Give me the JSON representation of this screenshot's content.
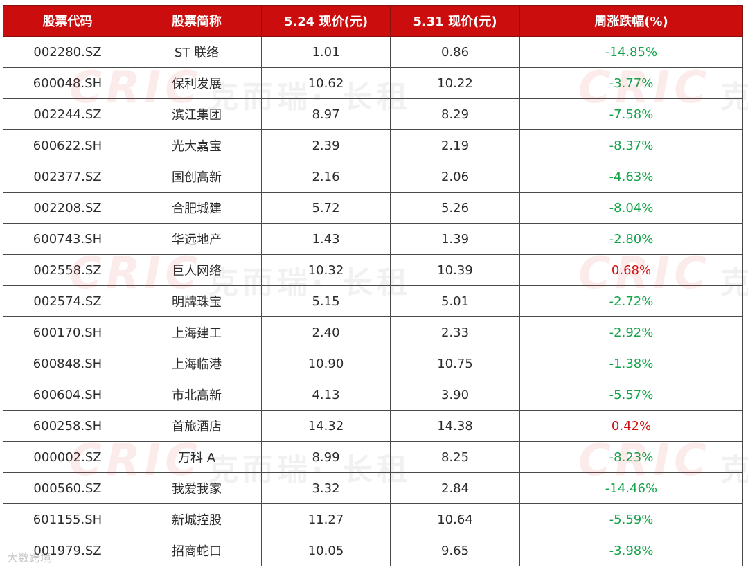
{
  "table": {
    "headers": [
      "股票代码",
      "股票简称",
      "5.24 现价(元)",
      "5.31 现价(元)",
      "周涨跌幅(%)"
    ],
    "rows": [
      {
        "code": "002280.SZ",
        "name": "ST 联络",
        "price_524": "1.01",
        "price_531": "0.86",
        "change": "-14.85%",
        "direction": "neg"
      },
      {
        "code": "600048.SH",
        "name": "保利发展",
        "price_524": "10.62",
        "price_531": "10.22",
        "change": "-3.77%",
        "direction": "neg"
      },
      {
        "code": "002244.SZ",
        "name": "滨江集团",
        "price_524": "8.97",
        "price_531": "8.29",
        "change": "-7.58%",
        "direction": "neg"
      },
      {
        "code": "600622.SH",
        "name": "光大嘉宝",
        "price_524": "2.39",
        "price_531": "2.19",
        "change": "-8.37%",
        "direction": "neg"
      },
      {
        "code": "002377.SZ",
        "name": "国创高新",
        "price_524": "2.16",
        "price_531": "2.06",
        "change": "-4.63%",
        "direction": "neg"
      },
      {
        "code": "002208.SZ",
        "name": "合肥城建",
        "price_524": "5.72",
        "price_531": "5.26",
        "change": "-8.04%",
        "direction": "neg"
      },
      {
        "code": "600743.SH",
        "name": "华远地产",
        "price_524": "1.43",
        "price_531": "1.39",
        "change": "-2.80%",
        "direction": "neg"
      },
      {
        "code": "002558.SZ",
        "name": "巨人网络",
        "price_524": "10.32",
        "price_531": "10.39",
        "change": "0.68%",
        "direction": "pos"
      },
      {
        "code": "002574.SZ",
        "name": "明牌珠宝",
        "price_524": "5.15",
        "price_531": "5.01",
        "change": "-2.72%",
        "direction": "neg"
      },
      {
        "code": "600170.SH",
        "name": "上海建工",
        "price_524": "2.40",
        "price_531": "2.33",
        "change": "-2.92%",
        "direction": "neg"
      },
      {
        "code": "600848.SH",
        "name": "上海临港",
        "price_524": "10.90",
        "price_531": "10.75",
        "change": "-1.38%",
        "direction": "neg"
      },
      {
        "code": "600604.SH",
        "name": "市北高新",
        "price_524": "4.13",
        "price_531": "3.90",
        "change": "-5.57%",
        "direction": "neg"
      },
      {
        "code": "600258.SH",
        "name": "首旅酒店",
        "price_524": "14.32",
        "price_531": "14.38",
        "change": "0.42%",
        "direction": "pos"
      },
      {
        "code": "000002.SZ",
        "name": "万科 A",
        "price_524": "8.99",
        "price_531": "8.25",
        "change": "-8.23%",
        "direction": "neg"
      },
      {
        "code": "000560.SZ",
        "name": "我爱我家",
        "price_524": "3.32",
        "price_531": "2.84",
        "change": "-14.46%",
        "direction": "neg"
      },
      {
        "code": "601155.SH",
        "name": "新城控股",
        "price_524": "11.27",
        "price_531": "10.64",
        "change": "-5.59%",
        "direction": "neg"
      },
      {
        "code": "001979.SZ",
        "name": "招商蛇口",
        "price_524": "10.05",
        "price_531": "9.65",
        "change": "-3.98%",
        "direction": "neg"
      }
    ]
  },
  "colors": {
    "header_bg": "#cc0d0d",
    "negative": "#15a34a",
    "positive": "#d01010"
  },
  "watermark": {
    "brand": "CRIC",
    "text": "克而瑞· 长租",
    "brand_short": "克",
    "corner": "大数跨境"
  }
}
